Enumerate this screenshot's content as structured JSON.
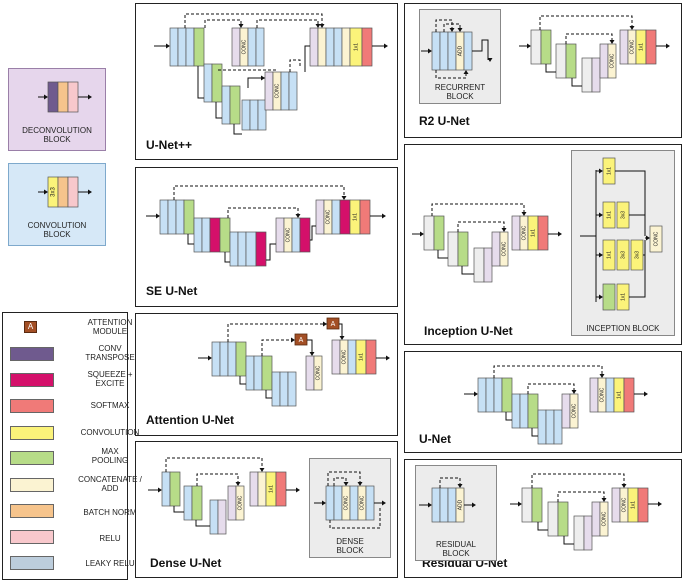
{
  "colors": {
    "encoder_blue": "#c6e0f5",
    "maxpool_green": "#b7dc88",
    "conv_yellow": "#fbf37a",
    "concat_cream": "#fbf3d2",
    "softmax_red": "#f07a78",
    "squeeze_magenta": "#d4106a",
    "deconv_purple": "#6f5a8e",
    "lavender": "#e6dcec",
    "batchnorm_orange": "#f6c48c",
    "relu_pink": "#f8c8cc",
    "leaky_relu_gray": "#bccddc",
    "attention_brown": "#a34f25",
    "block_bg_gray": "#ececec",
    "deconv_block_bg": "#e6d6ec",
    "conv_block_bg": "#d6e8f7"
  },
  "panels": {
    "unetpp": "U-Net++",
    "r2unet": "R2 U-Net",
    "seunet": "SE U-Net",
    "inception": "Inception U-Net",
    "attention": "Attention U-Net",
    "unet": "U-Net",
    "dense": "Dense U-Net",
    "residual": "Residual U-Net"
  },
  "blocks": {
    "deconvolution": "DECONVOLUTION\nBLOCK",
    "convolution": "CONVOLUTION\nBLOCK",
    "recurrent": "RECURRENT\nBLOCK",
    "inception": "INCEPTION BLOCK",
    "dense": "DENSE\nBLOCK",
    "residual": "RESIDUAL\nBLOCK"
  },
  "block_labels": {
    "conc": "CONC",
    "add": "ADD",
    "one_by_one": "1x1",
    "three_by_three": "3x3",
    "attention": "A"
  },
  "legend": [
    {
      "label": "ATTENTION\nMODULE",
      "icon": "attention-a-icon"
    },
    {
      "label": "CONV\nTRANSPOSE",
      "color": "#6f5a8e"
    },
    {
      "label": "SQUEEZE +\nEXCITE",
      "color": "#d4106a"
    },
    {
      "label": "SOFTMAX",
      "color": "#f07a78"
    },
    {
      "label": "CONVOLUTION",
      "color": "#fbf37a"
    },
    {
      "label": "MAX\nPOOLING",
      "color": "#b7dc88"
    },
    {
      "label": "CONCATENATE /\nADD",
      "color": "#fbf3d2"
    },
    {
      "label": "BATCH NORM",
      "color": "#f6c48c"
    },
    {
      "label": "RELU",
      "color": "#f8c8cc"
    },
    {
      "label": "LEAKY RELU",
      "color": "#bccddc"
    }
  ]
}
